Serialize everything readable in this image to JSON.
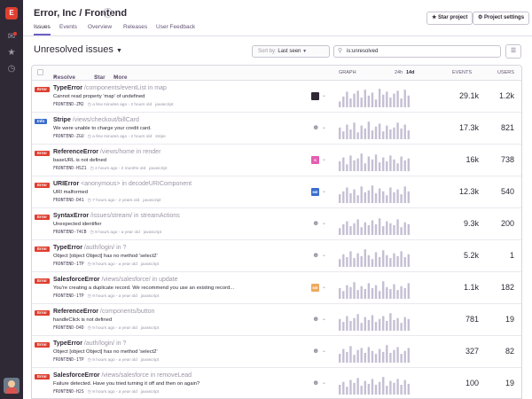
{
  "rail": {
    "logo": "E"
  },
  "header": {
    "title": "Error, Inc / Frontend",
    "star_label": "Star project",
    "settings_label": "Project settings"
  },
  "tabs": [
    "Issues",
    "Events",
    "Overview",
    "Releases",
    "User Feedback"
  ],
  "page": {
    "heading": "Unresolved issues",
    "sort_prefix": "Sort by:",
    "sort_value": "Last seen",
    "search_value": "is:unresolved"
  },
  "table_header": {
    "resolve": "Resolve",
    "star": "Star",
    "more": "More",
    "graph": "GRAPH",
    "range_24h": "24h",
    "range_14d": "14d",
    "events": "EVENTS",
    "users": "USERS"
  },
  "colors": {
    "error": "#e03e2f",
    "info": "#3b6ecc",
    "bars": "#c5bfd4"
  },
  "issues": [
    {
      "level": "Error",
      "level_color": "#e03e2f",
      "type": "TypeError",
      "path": "/components/eventList in map",
      "message": "Cannot read property 'map' of undefined",
      "short_id": "FRONTEND-ZM2",
      "age": "a few minutes ago - 2 hours old",
      "platform": "javascript",
      "events": "29.1k",
      "users": "1.2k",
      "assignee": "avatar-dark",
      "bars": [
        0.3,
        0.55,
        0.8,
        0.45,
        0.7,
        0.85,
        0.5,
        0.9,
        0.6,
        0.75,
        0.4,
        0.95,
        0.65,
        0.8,
        0.5,
        0.7,
        0.85,
        0.45,
        0.9,
        0.6
      ]
    },
    {
      "level": "Info",
      "level_color": "#3b6ecc",
      "type": "Stripe",
      "path": "/views/checkout/billCard",
      "message": "We were unable to charge your credit card.",
      "short_id": "FRONTEND-ZGU",
      "age": "a few minutes ago - 2 hours old",
      "platform": "stripe",
      "events": "17.3k",
      "users": "821",
      "assignee": "user-icon",
      "bars": [
        0.6,
        0.4,
        0.75,
        0.5,
        0.85,
        0.35,
        0.7,
        0.55,
        0.9,
        0.45,
        0.65,
        0.8,
        0.4,
        0.7,
        0.5,
        0.6,
        0.85,
        0.55,
        0.75,
        0.45
      ]
    },
    {
      "level": "Error",
      "level_color": "#e03e2f",
      "type": "ReferenceError",
      "path": "/views/home in render",
      "message": "baseURL is not defined",
      "short_id": "FRONTEND-HSZ1",
      "age": "2 hours ago - 2 months old",
      "platform": "javascript",
      "events": "16k",
      "users": "738",
      "assignee": "S",
      "assignee_color": "#e45fb1",
      "bars": [
        0.5,
        0.7,
        0.35,
        0.8,
        0.55,
        0.65,
        0.9,
        0.4,
        0.75,
        0.6,
        0.85,
        0.45,
        0.7,
        0.5,
        0.8,
        0.6,
        0.4,
        0.75,
        0.55,
        0.65
      ]
    },
    {
      "level": "Error",
      "level_color": "#e03e2f",
      "type": "URIError",
      "path": "<anonymous> in decodeURIComponent",
      "message": "URI malformed",
      "short_id": "FRONTEND-D41",
      "age": "7 hours ago - 2 years old",
      "platform": "javascript",
      "events": "12.3k",
      "users": "540",
      "assignee": "ME",
      "assignee_color": "#3b6ecc",
      "bars": [
        0.45,
        0.6,
        0.8,
        0.5,
        0.7,
        0.4,
        0.85,
        0.55,
        0.65,
        0.9,
        0.5,
        0.75,
        0.6,
        0.4,
        0.8,
        0.55,
        0.7,
        0.45,
        0.85,
        0.6
      ]
    },
    {
      "level": "Error",
      "level_color": "#e03e2f",
      "type": "SyntaxError",
      "path": "/issues/stream/ in streamActions",
      "message": "Unexpected identifier",
      "short_id": "FRONTEND-74CB",
      "age": "9 hours ago - a year old",
      "platform": "javascript",
      "events": "9.3k",
      "users": "200",
      "assignee": "user-icon",
      "bars": [
        0.35,
        0.55,
        0.7,
        0.45,
        0.6,
        0.8,
        0.4,
        0.65,
        0.5,
        0.75,
        0.55,
        0.85,
        0.45,
        0.7,
        0.6,
        0.5,
        0.8,
        0.4,
        0.65,
        0.55
      ]
    },
    {
      "level": "Error",
      "level_color": "#e03e2f",
      "type": "TypeError",
      "path": "/auth/login/ in ?",
      "message": "Object [object Object] has no method 'select2'",
      "short_id": "FRONTEND-1TP",
      "age": "9 hours ago - a year old",
      "platform": "javascript",
      "events": "5.2k",
      "users": "1",
      "assignee": "user-icon",
      "bars": [
        0.4,
        0.65,
        0.5,
        0.8,
        0.45,
        0.7,
        0.55,
        0.9,
        0.6,
        0.4,
        0.75,
        0.5,
        0.85,
        0.6,
        0.45,
        0.7,
        0.55,
        0.8,
        0.5,
        0.65
      ]
    },
    {
      "level": "Error",
      "level_color": "#e03e2f",
      "type": "SalesforceError",
      "path": "/views/salesforce/ in update",
      "message": "You're creating a duplicate record. We recommend you use an existing record...",
      "short_id": "FRONTEND-1TP",
      "age": "9 hours ago - a year old",
      "platform": "javascript",
      "events": "1.1k",
      "users": "182",
      "assignee": "ME",
      "assignee_color": "#f0a860",
      "bars": [
        0.55,
        0.4,
        0.7,
        0.6,
        0.85,
        0.45,
        0.65,
        0.5,
        0.8,
        0.55,
        0.7,
        0.4,
        0.9,
        0.6,
        0.5,
        0.75,
        0.45,
        0.65,
        0.55,
        0.8
      ]
    },
    {
      "level": "Error",
      "level_color": "#e03e2f",
      "type": "ReferenceError",
      "path": "/components/button",
      "message": "handleClick is not defined",
      "short_id": "FRONTEND-D4D",
      "age": "9 hours ago - a year old",
      "platform": "javascript",
      "events": "781",
      "users": "19",
      "assignee": "user-icon",
      "bars": [
        0.6,
        0.45,
        0.75,
        0.5,
        0.65,
        0.85,
        0.4,
        0.7,
        0.55,
        0.8,
        0.45,
        0.6,
        0.75,
        0.5,
        0.9,
        0.55,
        0.65,
        0.4,
        0.7,
        0.6
      ]
    },
    {
      "level": "Error",
      "level_color": "#e03e2f",
      "type": "TypeError",
      "path": "/auth/login/ in ?",
      "message": "Object [object Object] has no method 'select2'",
      "short_id": "FRONTEND-1TP",
      "age": "9 hours ago - a year old",
      "platform": "javascript",
      "events": "327",
      "users": "82",
      "assignee": "user-icon",
      "bars": [
        0.45,
        0.7,
        0.55,
        0.85,
        0.4,
        0.65,
        0.75,
        0.5,
        0.8,
        0.6,
        0.45,
        0.7,
        0.55,
        0.9,
        0.5,
        0.65,
        0.8,
        0.45,
        0.6,
        0.75
      ]
    },
    {
      "level": "Error",
      "level_color": "#e03e2f",
      "type": "SalesforceError",
      "path": "/views/salesforce in removeLead",
      "message": "Failure detected. Have you tried turning it off and then on again?",
      "short_id": "FRONTEND-H2S",
      "age": "9 hours ago - a year old",
      "platform": "javascript",
      "events": "100",
      "users": "19",
      "assignee": "user-icon",
      "bars": [
        0.5,
        0.65,
        0.4,
        0.75,
        0.6,
        0.85,
        0.45,
        0.7,
        0.55,
        0.8,
        0.5,
        0.65,
        0.9,
        0.45,
        0.7,
        0.6,
        0.8,
        0.5,
        0.75,
        0.55
      ]
    }
  ]
}
